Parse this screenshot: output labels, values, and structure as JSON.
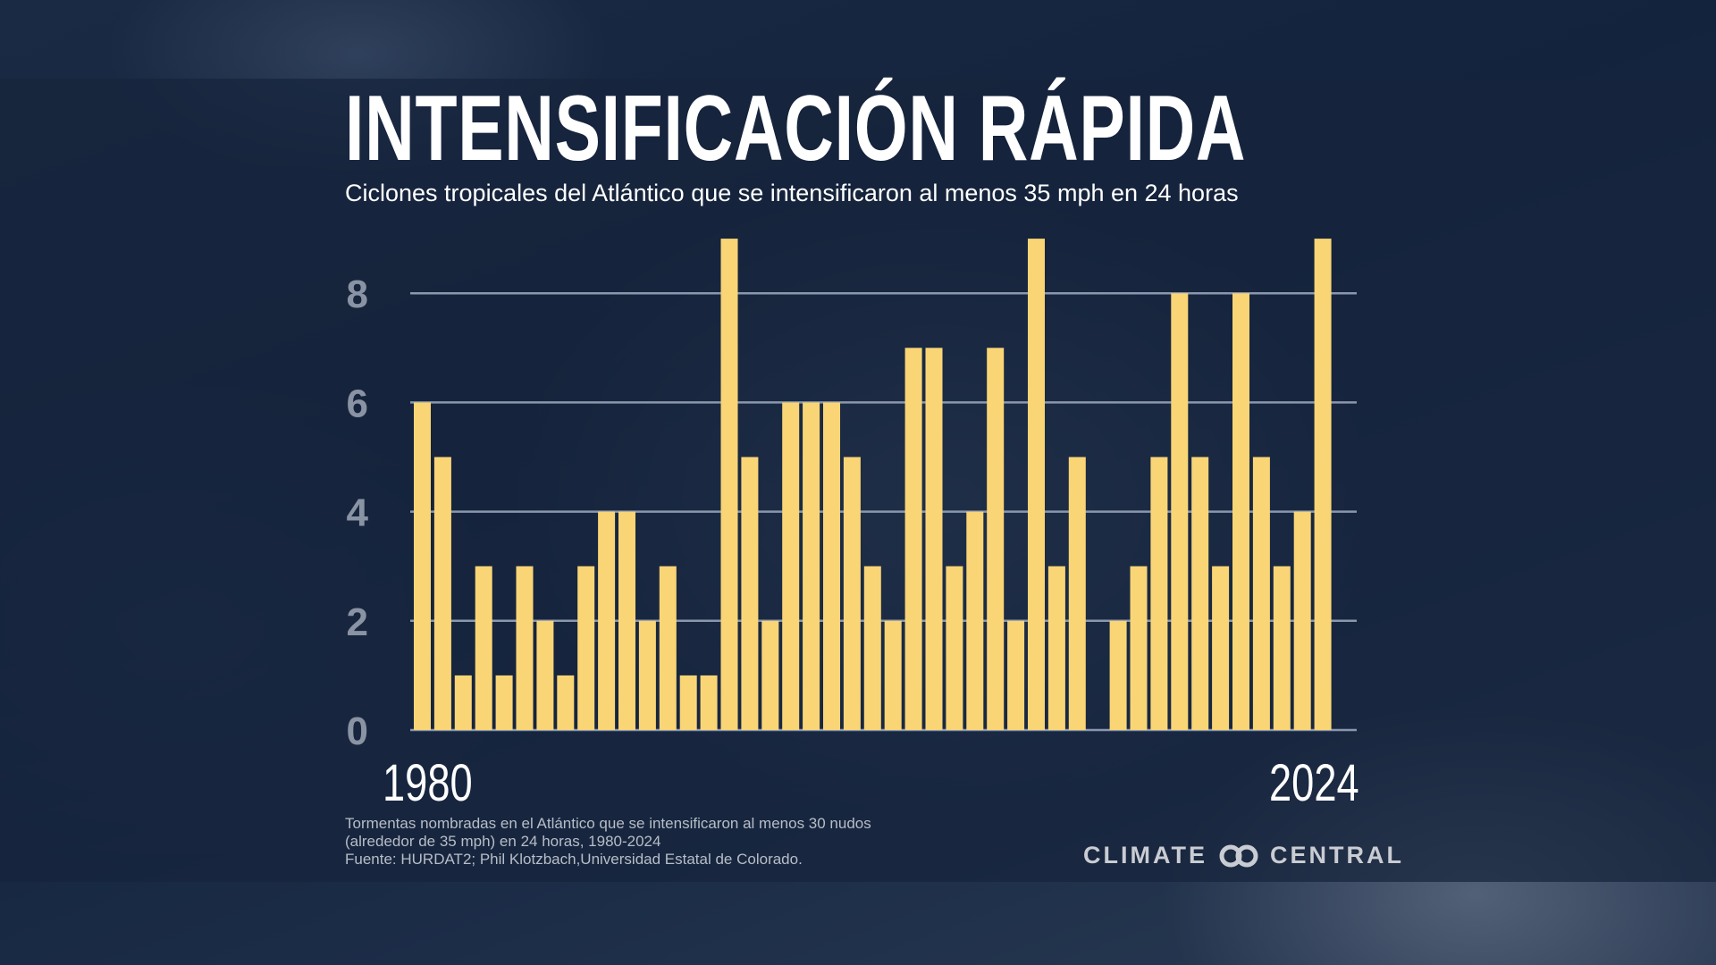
{
  "title": "INTENSIFICACIÓN RÁPIDA",
  "subtitle": "Ciclones tropicales del Atlántico que se intensificaron al menos 35 mph en 24 horas",
  "footnote": [
    "Tormentas nombradas en el Atlántico que se intensificaron al menos 30 nudos",
    "(alrededor de 35 mph) en 24 horas, 1980-2024",
    "Fuente: HURDAT2; Phil Klotzbach,Universidad Estatal de Colorado."
  ],
  "logo": {
    "left": "CLIMATE",
    "right": "CENTRAL"
  },
  "colors": {
    "bar": "#f9d576",
    "grid": "#8a97ad",
    "background": "#16243c"
  },
  "chart_data": {
    "type": "bar",
    "title": "INTENSIFICACIÓN RÁPIDA",
    "x": [
      1980,
      1981,
      1982,
      1983,
      1984,
      1985,
      1986,
      1987,
      1988,
      1989,
      1990,
      1991,
      1992,
      1993,
      1994,
      1995,
      1996,
      1997,
      1998,
      1999,
      2000,
      2001,
      2002,
      2003,
      2004,
      2005,
      2006,
      2007,
      2008,
      2009,
      2010,
      2011,
      2012,
      2013,
      2014,
      2015,
      2016,
      2017,
      2018,
      2019,
      2020,
      2021,
      2022,
      2023,
      2024
    ],
    "values": [
      6,
      5,
      1,
      3,
      1,
      3,
      2,
      1,
      3,
      4,
      4,
      2,
      3,
      1,
      1,
      9,
      5,
      2,
      6,
      6,
      6,
      5,
      3,
      2,
      7,
      7,
      3,
      4,
      7,
      2,
      9,
      3,
      5,
      0,
      2,
      3,
      5,
      8,
      5,
      3,
      8,
      5,
      3,
      4,
      9
    ],
    "x_tick_labels": [
      "1980",
      "2024"
    ],
    "y_ticks": [
      "0",
      "2",
      "4",
      "6",
      "8"
    ],
    "ylim": [
      0,
      9
    ],
    "grid": true
  }
}
